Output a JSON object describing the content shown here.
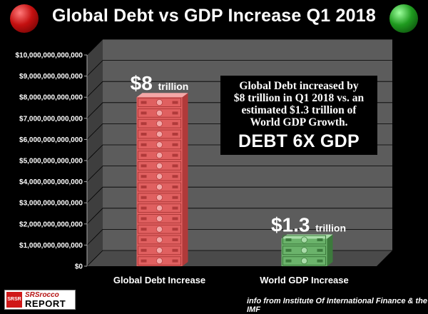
{
  "header": {
    "title": "Global Debt vs GDP Increase Q1 2018",
    "left_icon": "red-globe-icon",
    "right_icon": "green-globe-icon"
  },
  "callout": {
    "line1": "Global Debt increased by",
    "line2": "$8 trillion in Q1 2018 vs. an",
    "line3": "estimated $1.3 trillion of",
    "line4": "World GDP Growth.",
    "emphasis": "DEBT 6X GDP"
  },
  "footer": {
    "source": "info from Institute Of International Finance & the  IMF",
    "logo_top": "SRSrocco",
    "logo_bottom": "REPORT",
    "logo_mark": "SRSR"
  },
  "chart_data": {
    "type": "bar",
    "categories": [
      "Global Debt Increase",
      "World GDP Increase"
    ],
    "values": [
      8000000000000,
      1300000000000
    ],
    "bar_labels": [
      {
        "big": "$8",
        "small": "trillion"
      },
      {
        "big": "$1.3",
        "small": "trillion"
      }
    ],
    "title": "Global Debt vs GDP Increase Q1 2018",
    "xlabel": "",
    "ylabel": "",
    "ylim": [
      0,
      10000000000000
    ],
    "y_ticks": [
      0,
      1000000000000,
      2000000000000,
      3000000000000,
      4000000000000,
      5000000000000,
      6000000000000,
      7000000000000,
      8000000000000,
      9000000000000,
      10000000000000
    ],
    "y_tick_labels": [
      "$0",
      "$1,000,000,000,000",
      "$2,000,000,000,000",
      "$3,000,000,000,000",
      "$4,000,000,000,000",
      "$5,000,000,000,000",
      "$6,000,000,000,000",
      "$7,000,000,000,000",
      "$8,000,000,000,000",
      "$9,000,000,000,000",
      "$10,000,000,000,000"
    ],
    "grid": true,
    "bar_style": [
      "stack-of-red-100-dollar-bills",
      "stack-of-green-100-dollar-bills"
    ],
    "colors": {
      "debt": "#e06060",
      "gdp": "#6bb36b",
      "wall": "#5c5c5c",
      "floor": "#4a4a4a"
    }
  }
}
